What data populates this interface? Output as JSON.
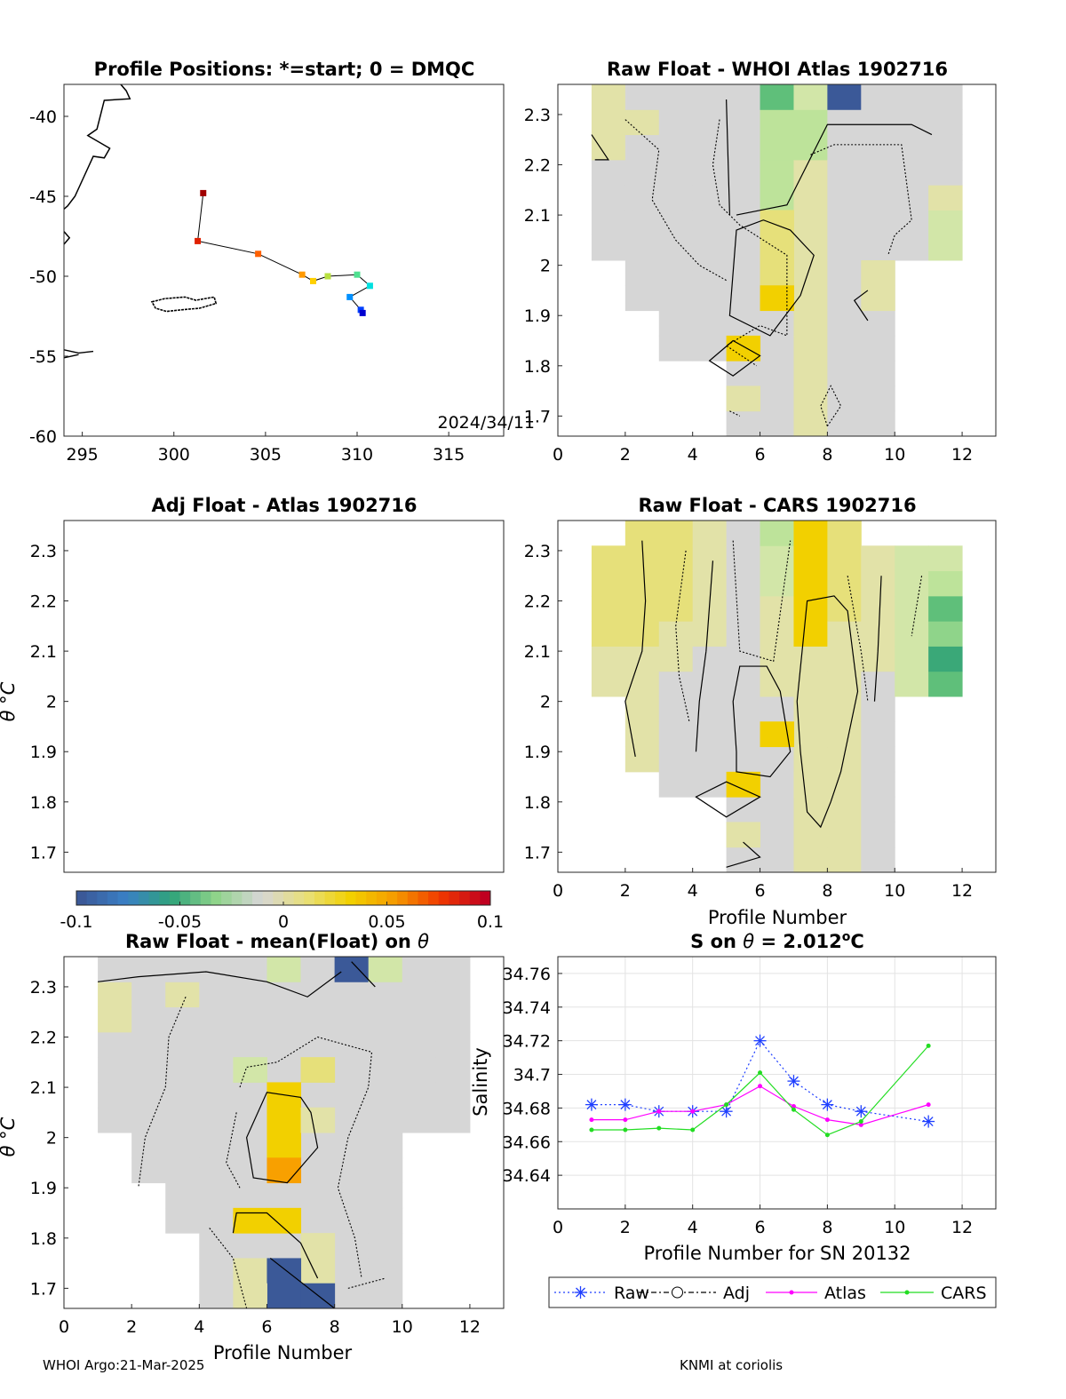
{
  "footer": {
    "left": "WHOI Argo:21-Mar-2025",
    "right": "KNMI at coriolis"
  },
  "colorbar": {
    "ticks": [
      "-0.1",
      "-0.05",
      "0",
      "0.05",
      "0.1"
    ],
    "range": [
      -0.1,
      0.1
    ],
    "colors": [
      "#3b5998",
      "#3a80c6",
      "#2fa37a",
      "#8fd48a",
      "#d6d6d6",
      "#e8e07a",
      "#f2d000",
      "#f59a00",
      "#f03800",
      "#c00020"
    ]
  },
  "chart_data": [
    {
      "id": "positions",
      "type": "scatter",
      "title": "Profile Positions: *=start; 0 = DMQC",
      "xlim": [
        294,
        318
      ],
      "ylim": [
        -60,
        -38
      ],
      "xticks": [
        "295",
        "300",
        "305",
        "310",
        "315"
      ],
      "yticks": [
        "-40",
        "-45",
        "-50",
        "-55",
        "-60"
      ],
      "annotation": "2024/34/11",
      "track": [
        {
          "lon": 301.6,
          "lat": -44.8,
          "color": "#a00000"
        },
        {
          "lon": 301.3,
          "lat": -47.8,
          "color": "#e02000"
        },
        {
          "lon": 304.6,
          "lat": -48.6,
          "color": "#ff6000"
        },
        {
          "lon": 307.0,
          "lat": -49.9,
          "color": "#ff9900"
        },
        {
          "lon": 307.6,
          "lat": -50.3,
          "color": "#ffd000"
        },
        {
          "lon": 308.4,
          "lat": -50.0,
          "color": "#b8e040"
        },
        {
          "lon": 310.0,
          "lat": -49.9,
          "color": "#50e090"
        },
        {
          "lon": 310.7,
          "lat": -50.6,
          "color": "#00e0e0"
        },
        {
          "lon": 309.6,
          "lat": -51.3,
          "color": "#0090ff"
        },
        {
          "lon": 310.2,
          "lat": -52.1,
          "color": "#0040ff"
        },
        {
          "lon": 310.3,
          "lat": -52.3,
          "color": "#0000d0"
        }
      ]
    },
    {
      "id": "whoi",
      "type": "heatmap",
      "title": "Raw Float - WHOI Atlas  1902716",
      "xlim": [
        0,
        13
      ],
      "ylim": [
        1.66,
        2.36
      ],
      "xticks": [
        "0",
        "2",
        "4",
        "6",
        "8",
        "10",
        "12"
      ],
      "yticks": [
        "1.7",
        "1.8",
        "1.9",
        "2",
        "2.1",
        "2.2",
        "2.3"
      ],
      "xlabel": "",
      "ylabel": ""
    },
    {
      "id": "adj",
      "type": "heatmap",
      "title": "Adj Float - Atlas  1902716",
      "xlim": [
        0,
        13
      ],
      "ylim": [
        1.66,
        2.36
      ],
      "xticks": [],
      "yticks": [
        "1.7",
        "1.8",
        "1.9",
        "2",
        "2.1",
        "2.2",
        "2.3"
      ],
      "ylabel": "θ °C"
    },
    {
      "id": "cars",
      "type": "heatmap",
      "title": "Raw Float - CARS  1902716",
      "xlim": [
        0,
        13
      ],
      "ylim": [
        1.66,
        2.36
      ],
      "xticks": [
        "0",
        "2",
        "4",
        "6",
        "8",
        "10",
        "12"
      ],
      "yticks": [
        "1.7",
        "1.8",
        "1.9",
        "2",
        "2.1",
        "2.2",
        "2.3"
      ],
      "xlabel": "Profile Number"
    },
    {
      "id": "mean",
      "type": "heatmap",
      "title": "Raw Float - mean(Float) on θ",
      "xlim": [
        0,
        13
      ],
      "ylim": [
        1.66,
        2.36
      ],
      "xticks": [
        "0",
        "2",
        "4",
        "6",
        "8",
        "10",
        "12"
      ],
      "yticks": [
        "1.7",
        "1.8",
        "1.9",
        "2",
        "2.1",
        "2.2",
        "2.3"
      ],
      "xlabel": "Profile Number",
      "ylabel": "θ °C"
    },
    {
      "id": "salinity",
      "type": "line",
      "title": "S on θ = 2.012°C",
      "xlim": [
        0,
        13
      ],
      "ylim": [
        34.62,
        34.77
      ],
      "xticks": [
        "0",
        "2",
        "4",
        "6",
        "8",
        "10",
        "12"
      ],
      "yticks": [
        "34.64",
        "34.66",
        "34.68",
        "34.7",
        "34.72",
        "34.74",
        "34.76"
      ],
      "xlabel": "Profile Number for SN 20132",
      "ylabel": "Salinity",
      "series": [
        {
          "name": "Raw",
          "color": "#1f3fff",
          "x": [
            1,
            2,
            3,
            4,
            5,
            6,
            7,
            8,
            9,
            11
          ],
          "values": [
            34.682,
            34.682,
            34.678,
            34.678,
            34.678,
            34.72,
            34.696,
            34.682,
            34.678,
            34.672
          ]
        },
        {
          "name": "Adj",
          "color": "#000000",
          "x": [],
          "values": []
        },
        {
          "name": "Atlas",
          "color": "#ff00ff",
          "x": [
            1,
            2,
            3,
            4,
            5,
            6,
            7,
            8,
            9,
            11
          ],
          "values": [
            34.673,
            34.673,
            34.678,
            34.678,
            34.682,
            34.693,
            34.681,
            34.673,
            34.67,
            34.682
          ]
        },
        {
          "name": "CARS",
          "color": "#22dd22",
          "x": [
            1,
            2,
            3,
            4,
            5,
            6,
            7,
            8,
            9,
            11
          ],
          "values": [
            34.667,
            34.667,
            34.668,
            34.667,
            34.682,
            34.701,
            34.679,
            34.664,
            34.672,
            34.717
          ]
        }
      ]
    }
  ]
}
